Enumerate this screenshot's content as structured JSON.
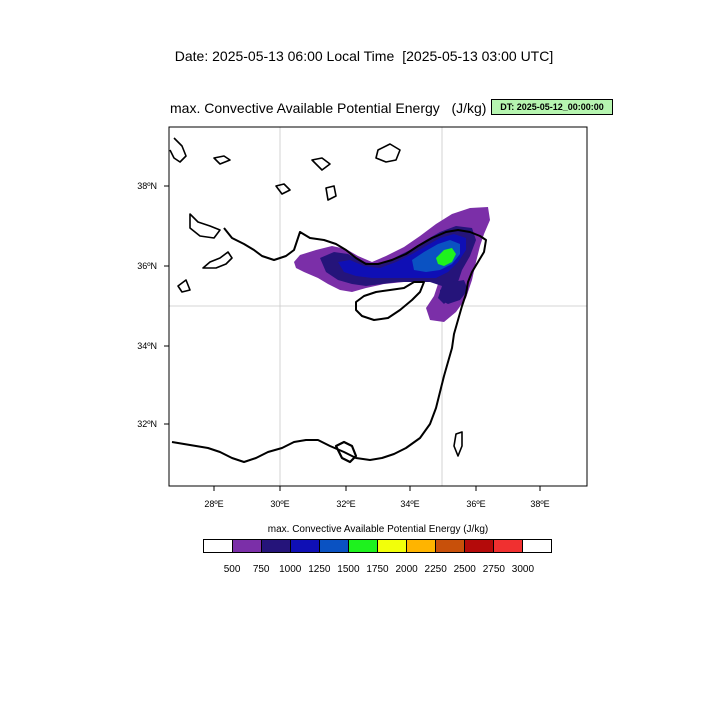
{
  "header": {
    "date_label": "Date: 2025-05-13  06:00 Local Time",
    "utc_label": "[2025-05-13  03:00 UTC]"
  },
  "plot": {
    "title": "max. Convective Available Potential Energy   (J/kg)",
    "dt_badge": "DT: 2025-05-12_00:00:00"
  },
  "map": {
    "x_ticks": [
      "28ºE",
      "30ºE",
      "32ºE",
      "34ºE",
      "36ºE",
      "38ºE"
    ],
    "y_ticks": [
      "38ºN",
      "36ºN",
      "34ºN",
      "32ºN"
    ],
    "gridlines": {
      "longitudes": [
        "30ºE",
        "35ºE"
      ],
      "latitudes": [
        "35ºN"
      ]
    },
    "region": "Eastern Mediterranean / Cyprus / Egypt / Levant coast"
  },
  "legend": {
    "title": "max. Convective Available Potential Energy  (J/kg)",
    "levels": [
      "500",
      "750",
      "1000",
      "1250",
      "1500",
      "1750",
      "2000",
      "2250",
      "2500",
      "2750",
      "3000"
    ],
    "colors": [
      "#ffffff",
      "#7b2fa8",
      "#25147a",
      "#0f0fb5",
      "#0a52c2",
      "#1ef21e",
      "#f2ff0a",
      "#ffb400",
      "#c8500a",
      "#b40a0a",
      "#f03030",
      "#ffffff"
    ]
  }
}
